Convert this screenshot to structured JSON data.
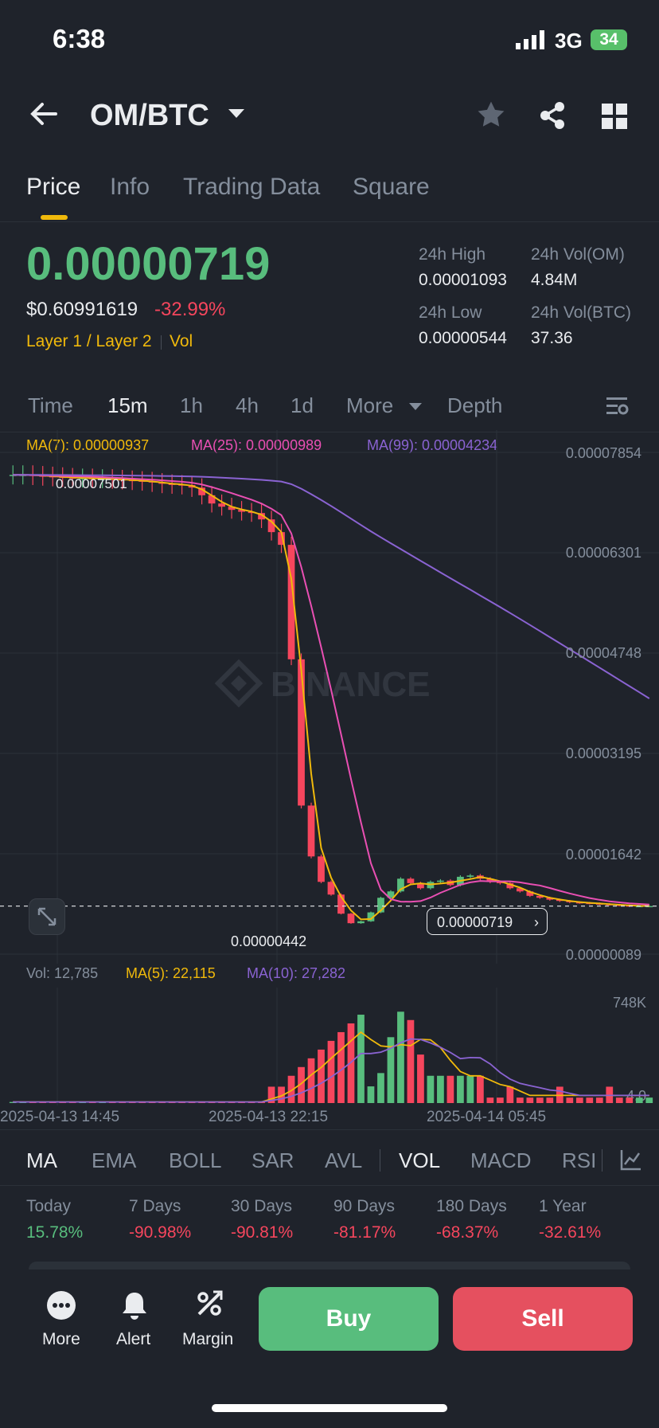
{
  "status_bar": {
    "time": "6:38",
    "network": "3G",
    "battery": "34"
  },
  "header": {
    "pair": "OM/BTC",
    "icons": [
      "back-arrow-icon",
      "dropdown-caret-icon",
      "star-icon",
      "share-icon",
      "grid-icon"
    ]
  },
  "tabs": [
    "Price",
    "Info",
    "Trading Data",
    "Square"
  ],
  "active_tab": "Price",
  "ticker": {
    "last_price": "0.00000719",
    "usd_price": "$0.60991619",
    "change": "-32.99%",
    "tag1": "Layer 1 / Layer 2",
    "tag2": "Vol",
    "high_label": "24h High",
    "high_value": "0.00001093",
    "vol_om_label": "24h Vol(OM)",
    "vol_om_value": "4.84M",
    "low_label": "24h Low",
    "low_value": "0.00000544",
    "vol_btc_label": "24h Vol(BTC)",
    "vol_btc_value": "37.36"
  },
  "timeframes": [
    "Time",
    "15m",
    "1h",
    "4h",
    "1d",
    "More",
    "Depth"
  ],
  "active_timeframe": "15m",
  "ma_legend": {
    "ma7": "MA(7): 0.00000937",
    "ma25": "MA(25): 0.00000989",
    "ma99": "MA(99): 0.00004234"
  },
  "price_axis": [
    "0.00007854",
    "0.00006301",
    "0.00004748",
    "0.00003195",
    "0.00001642",
    "0.00000089"
  ],
  "annotations": {
    "high_marker": "0.00007501",
    "low_marker": "0.00000442",
    "current_price_box": "0.00000719"
  },
  "watermark": "BINANCE",
  "volume_legend": {
    "vol": "Vol: 12,785",
    "ma5": "MA(5): 22,115",
    "ma10": "MA(10): 27,282"
  },
  "volume_axis": {
    "top": "748K",
    "bottom": "4.0"
  },
  "time_axis": [
    "2025-04-13 14:45",
    "2025-04-13 22:15",
    "2025-04-14 05:45"
  ],
  "indicators": [
    "MA",
    "EMA",
    "BOLL",
    "SAR",
    "AVL",
    "VOL",
    "MACD",
    "RSI"
  ],
  "active_indicators": [
    "MA",
    "VOL"
  ],
  "performance": [
    {
      "label": "Today",
      "value": "15.78%"
    },
    {
      "label": "7 Days",
      "value": "-90.98%"
    },
    {
      "label": "30 Days",
      "value": "-90.81%"
    },
    {
      "label": "90 Days",
      "value": "-81.17%"
    },
    {
      "label": "180 Days",
      "value": "-68.37%"
    },
    {
      "label": "1 Year",
      "value": "-32.61%"
    }
  ],
  "bottom_bar": {
    "more": "More",
    "alert": "Alert",
    "margin": "Margin",
    "buy": "Buy",
    "sell": "Sell"
  },
  "colors": {
    "up": "#58bd7d",
    "down": "#f6465d",
    "accent": "#f0b90b",
    "ma7": "#f0b90b",
    "ma25": "#e94fb3",
    "ma99": "#8a63d2",
    "bg": "#1f232b"
  },
  "chart_data": {
    "type": "candlestick",
    "interval": "15m",
    "y_range": [
      8.9e-07,
      7.854e-05
    ],
    "high": 7.501e-05,
    "low": 4.42e-06,
    "last": 7.19e-06,
    "close_series": [
      7.5e-05,
      7.5e-05,
      7.49e-05,
      7.48e-05,
      7.47e-05,
      7.46e-05,
      7.45e-05,
      7.45e-05,
      7.44e-05,
      7.44e-05,
      7.43e-05,
      7.42e-05,
      7.41e-05,
      7.4e-05,
      7.38e-05,
      7.36e-05,
      7.35e-05,
      7.34e-05,
      7.3e-05,
      7.18e-05,
      7.05e-05,
      7e-05,
      6.95e-05,
      6.92e-05,
      6.9e-05,
      6.8e-05,
      6.6e-05,
      6.4e-05,
      4.6e-05,
      2.3e-05,
      1.5e-05,
      1.1e-05,
      9e-06,
      6e-06,
      4.5e-06,
      4.8e-06,
      6.2e-06,
      8.5e-06,
      9.5e-06,
      1.15e-05,
      1.08e-05,
      1e-05,
      1.1e-05,
      1.12e-05,
      1.05e-05,
      1.18e-05,
      1.2e-05,
      1.15e-05,
      1.1e-05,
      1.08e-05,
      1e-05,
      9.5e-06,
      8.8e-06,
      8.5e-06,
      8.2e-06,
      8e-06,
      7.8e-06,
      7.7e-06,
      7.6e-06,
      7.5e-06,
      7.4e-06,
      7.3e-06,
      7.2e-06,
      7.2e-06,
      7.2e-06
    ]
  }
}
